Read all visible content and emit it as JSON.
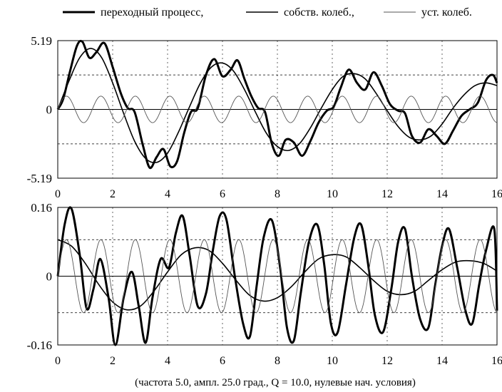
{
  "legend": {
    "transient": "переходный процесс,",
    "natural": "собств. колеб.,",
    "steady": "уст. колеб."
  },
  "footer": "(частота  5.0,  ампл.  25.0 град.,  Q =  10.0,  нулевые нач. условия)",
  "chart_data": [
    {
      "type": "line",
      "panel": "top",
      "ylim": [
        -5.19,
        5.19
      ],
      "xlim": [
        0,
        16
      ],
      "yticks": [
        "5.19",
        "0",
        "-5.19"
      ],
      "xticks": [
        "0",
        "2",
        "4",
        "6",
        "8",
        "10",
        "12",
        "14",
        "16"
      ],
      "dashed_levels": [
        2.6,
        -2.6
      ],
      "series": [
        {
          "key": "transient",
          "stroke": "#000000",
          "x": [
            0,
            0.2,
            0.45,
            0.7,
            0.9,
            1.15,
            1.4,
            1.7,
            2.0,
            2.3,
            2.55,
            2.8,
            3.1,
            3.35,
            3.6,
            3.85,
            4.1,
            4.35,
            4.6,
            4.85,
            5.1,
            5.4,
            5.7,
            6.0,
            6.3,
            6.55,
            6.8,
            7.05,
            7.3,
            7.55,
            7.8,
            8.05,
            8.3,
            8.6,
            8.9,
            9.2,
            9.5,
            9.8,
            10.05,
            10.3,
            10.6,
            10.9,
            11.2,
            11.5,
            11.8,
            12.1,
            12.4,
            12.65,
            12.9,
            13.2,
            13.5,
            13.8,
            14.1,
            14.4,
            14.7,
            15.0,
            15.3,
            15.6,
            15.85,
            16.0
          ],
          "y": [
            0,
            0.8,
            2.9,
            4.8,
            5.1,
            3.9,
            4.3,
            5.0,
            3.2,
            1.2,
            0.1,
            -0.2,
            -2.7,
            -4.4,
            -3.6,
            -3.0,
            -4.3,
            -3.9,
            -1.8,
            -0.2,
            0.1,
            2.6,
            3.8,
            2.5,
            3.0,
            3.7,
            2.3,
            1.0,
            0.1,
            -0.2,
            -2.6,
            -3.5,
            -2.3,
            -2.5,
            -3.5,
            -2.4,
            -1.0,
            -0.1,
            0.2,
            1.6,
            3.0,
            2.0,
            1.5,
            2.8,
            1.8,
            0.4,
            -0.1,
            -0.3,
            -2.0,
            -2.5,
            -1.5,
            -2.0,
            -2.6,
            -1.6,
            -0.5,
            0,
            0.5,
            2.2,
            2.6,
            2.0
          ]
        },
        {
          "key": "natural",
          "stroke": "#000000",
          "x": [
            0,
            0.4,
            0.8,
            1.2,
            1.6,
            2.0,
            2.4,
            2.8,
            3.2,
            3.6,
            4.0,
            4.4,
            4.8,
            5.2,
            5.6,
            6.0,
            6.4,
            6.8,
            7.2,
            7.6,
            8.0,
            8.4,
            8.8,
            9.2,
            9.6,
            10.0,
            10.4,
            10.8,
            11.2,
            11.6,
            12.0,
            12.4,
            12.8,
            13.2,
            13.6,
            14.0,
            14.4,
            14.8,
            15.2,
            15.6,
            16.0
          ],
          "y": [
            0,
            2.1,
            3.9,
            4.6,
            3.9,
            2.0,
            -0.3,
            -2.4,
            -3.7,
            -4.0,
            -3.3,
            -1.7,
            0.2,
            2.0,
            3.2,
            3.5,
            2.9,
            1.5,
            -0.2,
            -1.8,
            -2.8,
            -3.1,
            -2.6,
            -1.4,
            0.1,
            1.5,
            2.5,
            2.7,
            2.3,
            1.2,
            -0.1,
            -1.3,
            -2.1,
            -2.3,
            -2.0,
            -1.1,
            0.1,
            1.1,
            1.8,
            2.0,
            1.8
          ]
        },
        {
          "key": "steady",
          "stroke": "#555555",
          "amplitude": 1.0,
          "period": 1.256
        }
      ]
    },
    {
      "type": "line",
      "panel": "bottom",
      "ylim": [
        -0.16,
        0.16
      ],
      "xlim": [
        0,
        16
      ],
      "yticks": [
        "0.16",
        "0",
        "-0.16"
      ],
      "xticks": [
        "0",
        "2",
        "4",
        "6",
        "8",
        "10",
        "12",
        "14",
        "16"
      ],
      "dashed_levels": [
        0.085,
        -0.085
      ],
      "series": [
        {
          "key": "transient",
          "stroke": "#000000",
          "x": [
            0,
            0.25,
            0.5,
            0.8,
            1.05,
            1.3,
            1.55,
            1.85,
            2.1,
            2.4,
            2.7,
            2.95,
            3.2,
            3.45,
            3.75,
            4.05,
            4.3,
            4.55,
            4.8,
            5.1,
            5.4,
            5.65,
            5.9,
            6.15,
            6.45,
            6.75,
            7.0,
            7.25,
            7.5,
            7.8,
            8.1,
            8.35,
            8.6,
            8.85,
            9.15,
            9.45,
            9.7,
            9.95,
            10.2,
            10.5,
            10.8,
            11.05,
            11.3,
            11.55,
            11.85,
            12.15,
            12.4,
            12.65,
            12.9,
            13.2,
            13.5,
            13.75,
            14.0,
            14.25,
            14.55,
            14.85,
            15.1,
            15.35,
            15.6,
            15.9,
            16.0
          ],
          "y": [
            0,
            0.12,
            0.157,
            0.05,
            -0.075,
            -0.03,
            0.04,
            -0.05,
            -0.16,
            -0.05,
            0.01,
            -0.07,
            -0.155,
            -0.05,
            0.04,
            0.02,
            0.1,
            0.14,
            0.05,
            -0.07,
            -0.04,
            0.06,
            0.14,
            0.13,
            0.0,
            -0.11,
            -0.14,
            -0.02,
            0.09,
            0.13,
            0.02,
            -0.12,
            -0.15,
            -0.04,
            0.08,
            0.12,
            0.03,
            -0.11,
            -0.13,
            -0.02,
            0.09,
            0.12,
            0.03,
            -0.09,
            -0.13,
            -0.03,
            0.08,
            0.11,
            0.0,
            -0.1,
            -0.12,
            -0.02,
            0.07,
            0.11,
            0.02,
            -0.08,
            -0.11,
            -0.02,
            0.06,
            0.11,
            -0.08
          ]
        },
        {
          "key": "natural",
          "stroke": "#000000",
          "x": [
            0,
            0.5,
            1.0,
            1.5,
            2.0,
            2.5,
            3.0,
            3.5,
            4.0,
            4.5,
            5.0,
            5.5,
            6.0,
            6.5,
            7.0,
            7.5,
            8.0,
            8.5,
            9.0,
            9.5,
            10.0,
            10.5,
            11.0,
            11.5,
            12.0,
            12.5,
            13.0,
            13.5,
            14.0,
            14.5,
            15.0,
            15.5,
            16.0
          ],
          "y": [
            0.085,
            0.07,
            0.03,
            -0.02,
            -0.06,
            -0.078,
            -0.07,
            -0.035,
            0.01,
            0.05,
            0.066,
            0.06,
            0.03,
            -0.01,
            -0.045,
            -0.058,
            -0.05,
            -0.025,
            0.01,
            0.04,
            0.05,
            0.045,
            0.02,
            -0.01,
            -0.035,
            -0.043,
            -0.035,
            -0.01,
            0.015,
            0.033,
            0.036,
            0.03,
            0.012
          ]
        },
        {
          "key": "steady",
          "stroke": "#555555",
          "amplitude": 0.085,
          "period": 1.256,
          "phase": "cos-neg"
        }
      ]
    }
  ]
}
